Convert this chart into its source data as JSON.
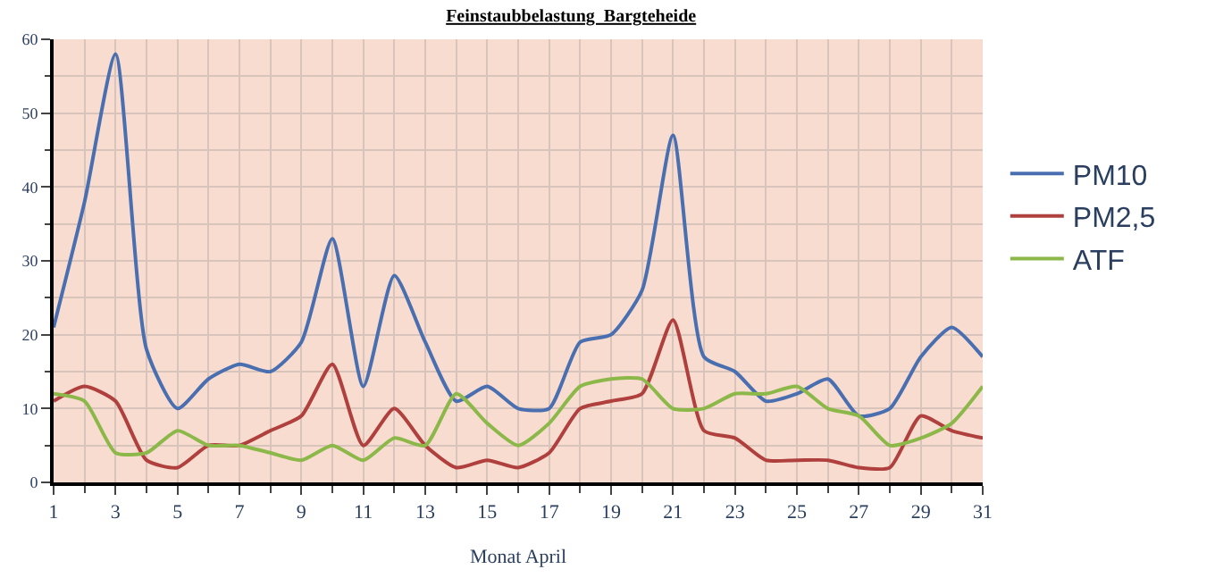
{
  "chart_data": {
    "type": "line",
    "title": "Feinstaubbelastung  Bargteheide",
    "xlabel": "Monat April",
    "x": [
      1,
      2,
      3,
      4,
      5,
      6,
      7,
      8,
      9,
      10,
      11,
      12,
      13,
      14,
      15,
      16,
      17,
      18,
      19,
      20,
      21,
      22,
      23,
      24,
      25,
      26,
      27,
      28,
      29,
      30,
      31
    ],
    "series": [
      {
        "name": "PM10",
        "color": "#4a6fb0",
        "values": [
          21,
          38,
          58,
          18,
          10,
          14,
          16,
          15,
          19,
          33,
          13,
          28,
          19,
          11,
          13,
          10,
          10,
          19,
          20,
          26,
          47,
          17,
          15,
          11,
          12,
          14,
          9,
          10,
          17,
          21,
          17
        ]
      },
      {
        "name": "PM2,5",
        "color": "#b0403e",
        "values": [
          11,
          13,
          11,
          3,
          2,
          5,
          5,
          7,
          9,
          16,
          5,
          10,
          5,
          2,
          3,
          2,
          4,
          10,
          11,
          12,
          22,
          7,
          6,
          3,
          3,
          3,
          2,
          2,
          9,
          7,
          6
        ]
      },
      {
        "name": "ATF",
        "color": "#8cb84a",
        "values": [
          12,
          11,
          4,
          4,
          7,
          5,
          5,
          4,
          3,
          5,
          3,
          6,
          5,
          12,
          8,
          5,
          8,
          13,
          14,
          14,
          10,
          10,
          12,
          12,
          13,
          10,
          9,
          5,
          6,
          8,
          13
        ]
      }
    ],
    "xlim": [
      1,
      31
    ],
    "xticks": [
      1,
      3,
      5,
      7,
      9,
      11,
      13,
      15,
      17,
      19,
      21,
      23,
      25,
      27,
      29,
      31
    ],
    "ylim": [
      0,
      60
    ],
    "yticks": [
      0,
      10,
      20,
      30,
      40,
      50,
      60
    ],
    "grid": true,
    "legend": "right",
    "marker": "none",
    "line_style": "solid"
  }
}
